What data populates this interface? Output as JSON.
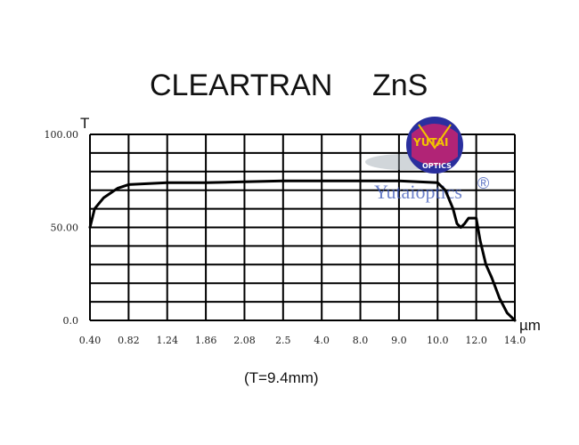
{
  "chart_data": {
    "type": "line",
    "title_left": "CLEARTRAN",
    "title_right": "ZnS",
    "subtitle": "(T=9.4mm)",
    "ylabel": "T",
    "xlabel": "µm",
    "ylim": [
      0,
      100
    ],
    "y_ticks": [
      "100.00",
      "50.00",
      "0.0"
    ],
    "x_ticks": [
      "0.40",
      "0.82",
      "1.24",
      "1.86",
      "2.08",
      "2.5",
      "4.0",
      "8.0",
      "9.0",
      "10.0",
      "12.0",
      "14.0"
    ],
    "grid": true,
    "series": [
      {
        "x": [
          0.4,
          0.45,
          0.55,
          0.7,
          0.82,
          1.24,
          1.86,
          2.08,
          2.5,
          4.0,
          8.0,
          9.0,
          10.0,
          10.4,
          10.8,
          11.0,
          11.2,
          11.4,
          11.6,
          11.8,
          12.0,
          12.2,
          12.5,
          12.8,
          13.2,
          13.6,
          14.0
        ],
        "y": [
          50,
          60,
          66,
          71,
          73,
          74,
          74,
          74.5,
          75,
          75,
          75,
          75,
          74,
          70,
          60,
          52,
          50,
          52,
          55,
          55,
          55,
          43,
          30,
          23,
          12,
          4,
          0
        ]
      }
    ],
    "line_color": "#000000",
    "grid_color": "#000000"
  },
  "watermark": {
    "logo_top": "YUTAI",
    "logo_bottom": "OPTICS",
    "text": "Yutaioptics",
    "mark": "®",
    "logo_colors": [
      "#2a2f9e",
      "#c9226f",
      "#f2c400"
    ]
  }
}
